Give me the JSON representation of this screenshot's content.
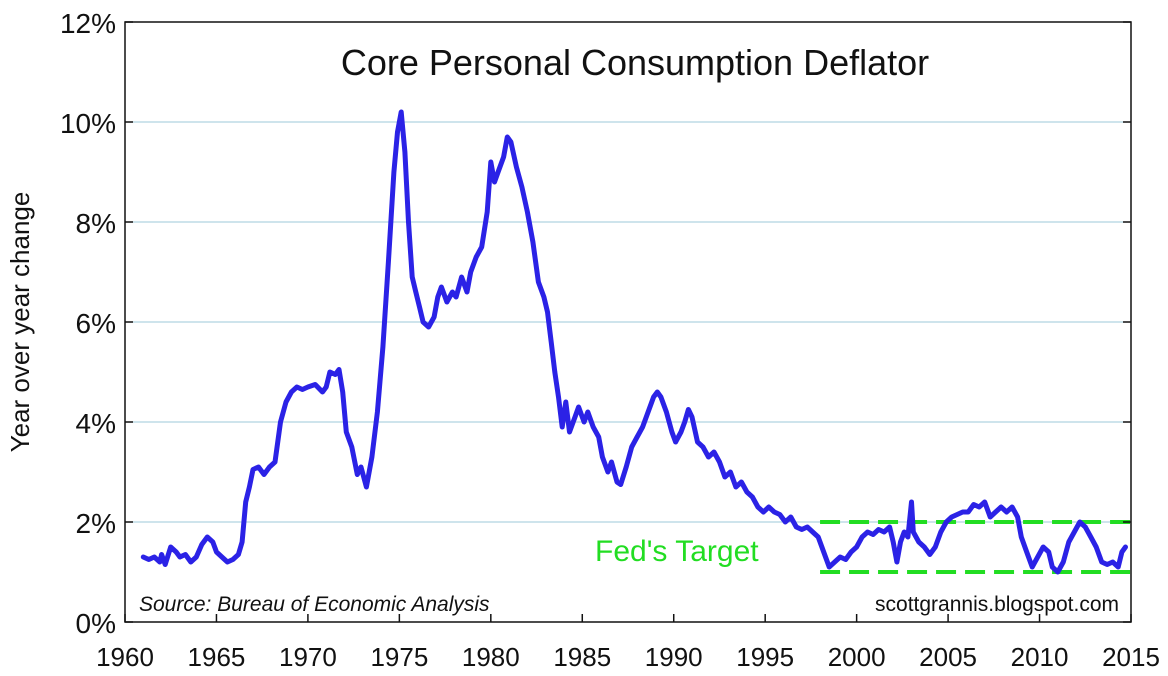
{
  "chart_data": {
    "type": "line",
    "title": "Core Personal Consumption Deflator",
    "ylabel": "Year over year change",
    "xlabel": "",
    "source": "Source: Bureau of Economic Analysis",
    "credit": "scottgrannis.blogspot.com",
    "target_label": "Fed's Target",
    "xlim": [
      1960,
      2015
    ],
    "ylim": [
      0,
      12
    ],
    "x_ticks": [
      {
        "value": 1960,
        "label": "1960"
      },
      {
        "value": 1965,
        "label": "1965"
      },
      {
        "value": 1970,
        "label": "1970"
      },
      {
        "value": 1975,
        "label": "1975"
      },
      {
        "value": 1980,
        "label": "1980"
      },
      {
        "value": 1985,
        "label": "1985"
      },
      {
        "value": 1990,
        "label": "1990"
      },
      {
        "value": 1995,
        "label": "1995"
      },
      {
        "value": 2000,
        "label": "2000"
      },
      {
        "value": 2005,
        "label": "2005"
      },
      {
        "value": 2010,
        "label": "2010"
      },
      {
        "value": 2015,
        "label": "2015"
      }
    ],
    "y_ticks": [
      {
        "value": 0,
        "label": "0%"
      },
      {
        "value": 2,
        "label": "2%"
      },
      {
        "value": 4,
        "label": "4%"
      },
      {
        "value": 6,
        "label": "6%"
      },
      {
        "value": 8,
        "label": "8%"
      },
      {
        "value": 10,
        "label": "10%"
      },
      {
        "value": 12,
        "label": "12%"
      }
    ],
    "grid": true,
    "target_band": {
      "low": 1,
      "high": 2,
      "x_start": 1998,
      "x_end": 2015
    },
    "colors": {
      "line": "#2b22e6",
      "grid": "#9ec9d8",
      "target": "#22dd22",
      "text": "#111111"
    },
    "series": [
      {
        "values": [
          [
            1961.0,
            1.3
          ],
          [
            1961.3,
            1.25
          ],
          [
            1961.6,
            1.3
          ],
          [
            1961.9,
            1.2
          ],
          [
            1962.0,
            1.35
          ],
          [
            1962.2,
            1.15
          ],
          [
            1962.5,
            1.5
          ],
          [
            1962.8,
            1.4
          ],
          [
            1963.0,
            1.3
          ],
          [
            1963.3,
            1.35
          ],
          [
            1963.6,
            1.2
          ],
          [
            1963.9,
            1.3
          ],
          [
            1964.2,
            1.55
          ],
          [
            1964.5,
            1.7
          ],
          [
            1964.8,
            1.6
          ],
          [
            1965.0,
            1.4
          ],
          [
            1965.3,
            1.3
          ],
          [
            1965.6,
            1.2
          ],
          [
            1965.9,
            1.25
          ],
          [
            1966.2,
            1.35
          ],
          [
            1966.4,
            1.6
          ],
          [
            1966.6,
            2.4
          ],
          [
            1966.8,
            2.7
          ],
          [
            1967.0,
            3.05
          ],
          [
            1967.3,
            3.1
          ],
          [
            1967.6,
            2.95
          ],
          [
            1967.9,
            3.1
          ],
          [
            1968.2,
            3.2
          ],
          [
            1968.5,
            4.0
          ],
          [
            1968.8,
            4.4
          ],
          [
            1969.1,
            4.6
          ],
          [
            1969.4,
            4.7
          ],
          [
            1969.7,
            4.65
          ],
          [
            1970.0,
            4.7
          ],
          [
            1970.4,
            4.75
          ],
          [
            1970.8,
            4.6
          ],
          [
            1971.0,
            4.7
          ],
          [
            1971.2,
            5.0
          ],
          [
            1971.5,
            4.95
          ],
          [
            1971.7,
            5.05
          ],
          [
            1971.9,
            4.6
          ],
          [
            1972.1,
            3.8
          ],
          [
            1972.4,
            3.5
          ],
          [
            1972.7,
            2.95
          ],
          [
            1972.9,
            3.1
          ],
          [
            1973.2,
            2.7
          ],
          [
            1973.5,
            3.3
          ],
          [
            1973.8,
            4.2
          ],
          [
            1974.1,
            5.5
          ],
          [
            1974.4,
            7.2
          ],
          [
            1974.7,
            9.0
          ],
          [
            1974.9,
            9.8
          ],
          [
            1975.1,
            10.2
          ],
          [
            1975.3,
            9.4
          ],
          [
            1975.5,
            8.0
          ],
          [
            1975.7,
            6.9
          ],
          [
            1975.9,
            6.6
          ],
          [
            1976.1,
            6.3
          ],
          [
            1976.3,
            6.0
          ],
          [
            1976.6,
            5.9
          ],
          [
            1976.9,
            6.1
          ],
          [
            1977.1,
            6.5
          ],
          [
            1977.3,
            6.7
          ],
          [
            1977.6,
            6.4
          ],
          [
            1977.9,
            6.6
          ],
          [
            1978.1,
            6.5
          ],
          [
            1978.4,
            6.9
          ],
          [
            1978.7,
            6.6
          ],
          [
            1978.9,
            7.0
          ],
          [
            1979.2,
            7.3
          ],
          [
            1979.5,
            7.5
          ],
          [
            1979.8,
            8.2
          ],
          [
            1980.0,
            9.2
          ],
          [
            1980.2,
            8.8
          ],
          [
            1980.4,
            9.0
          ],
          [
            1980.7,
            9.3
          ],
          [
            1980.9,
            9.7
          ],
          [
            1981.1,
            9.6
          ],
          [
            1981.4,
            9.1
          ],
          [
            1981.7,
            8.7
          ],
          [
            1982.0,
            8.2
          ],
          [
            1982.3,
            7.6
          ],
          [
            1982.6,
            6.8
          ],
          [
            1982.9,
            6.5
          ],
          [
            1983.1,
            6.2
          ],
          [
            1983.3,
            5.6
          ],
          [
            1983.5,
            5.0
          ],
          [
            1983.7,
            4.5
          ],
          [
            1983.9,
            3.9
          ],
          [
            1984.1,
            4.4
          ],
          [
            1984.3,
            3.8
          ],
          [
            1984.6,
            4.1
          ],
          [
            1984.8,
            4.3
          ],
          [
            1985.1,
            4.0
          ],
          [
            1985.3,
            4.2
          ],
          [
            1985.6,
            3.9
          ],
          [
            1985.9,
            3.7
          ],
          [
            1986.1,
            3.3
          ],
          [
            1986.4,
            3.0
          ],
          [
            1986.6,
            3.2
          ],
          [
            1986.9,
            2.8
          ],
          [
            1987.1,
            2.75
          ],
          [
            1987.4,
            3.1
          ],
          [
            1987.7,
            3.5
          ],
          [
            1988.0,
            3.7
          ],
          [
            1988.3,
            3.9
          ],
          [
            1988.6,
            4.2
          ],
          [
            1988.9,
            4.5
          ],
          [
            1989.1,
            4.6
          ],
          [
            1989.3,
            4.5
          ],
          [
            1989.6,
            4.2
          ],
          [
            1989.9,
            3.8
          ],
          [
            1990.1,
            3.6
          ],
          [
            1990.4,
            3.8
          ],
          [
            1990.6,
            4.0
          ],
          [
            1990.8,
            4.25
          ],
          [
            1991.0,
            4.1
          ],
          [
            1991.3,
            3.6
          ],
          [
            1991.6,
            3.5
          ],
          [
            1991.9,
            3.3
          ],
          [
            1992.2,
            3.4
          ],
          [
            1992.5,
            3.2
          ],
          [
            1992.8,
            2.9
          ],
          [
            1993.1,
            3.0
          ],
          [
            1993.4,
            2.7
          ],
          [
            1993.7,
            2.8
          ],
          [
            1994.0,
            2.6
          ],
          [
            1994.3,
            2.5
          ],
          [
            1994.6,
            2.3
          ],
          [
            1994.9,
            2.2
          ],
          [
            1995.2,
            2.3
          ],
          [
            1995.5,
            2.2
          ],
          [
            1995.8,
            2.15
          ],
          [
            1996.1,
            2.0
          ],
          [
            1996.4,
            2.1
          ],
          [
            1996.7,
            1.9
          ],
          [
            1997.0,
            1.85
          ],
          [
            1997.3,
            1.9
          ],
          [
            1997.6,
            1.8
          ],
          [
            1997.9,
            1.7
          ],
          [
            1998.2,
            1.4
          ],
          [
            1998.5,
            1.1
          ],
          [
            1998.8,
            1.2
          ],
          [
            1999.1,
            1.3
          ],
          [
            1999.4,
            1.25
          ],
          [
            1999.7,
            1.4
          ],
          [
            2000.0,
            1.5
          ],
          [
            2000.3,
            1.7
          ],
          [
            2000.6,
            1.8
          ],
          [
            2000.9,
            1.75
          ],
          [
            2001.2,
            1.85
          ],
          [
            2001.5,
            1.8
          ],
          [
            2001.8,
            1.9
          ],
          [
            2002.0,
            1.6
          ],
          [
            2002.2,
            1.2
          ],
          [
            2002.4,
            1.6
          ],
          [
            2002.6,
            1.8
          ],
          [
            2002.8,
            1.7
          ],
          [
            2003.0,
            2.4
          ],
          [
            2003.1,
            1.8
          ],
          [
            2003.4,
            1.6
          ],
          [
            2003.7,
            1.5
          ],
          [
            2004.0,
            1.35
          ],
          [
            2004.3,
            1.5
          ],
          [
            2004.6,
            1.8
          ],
          [
            2004.9,
            2.0
          ],
          [
            2005.2,
            2.1
          ],
          [
            2005.5,
            2.15
          ],
          [
            2005.8,
            2.2
          ],
          [
            2006.1,
            2.2
          ],
          [
            2006.4,
            2.35
          ],
          [
            2006.7,
            2.3
          ],
          [
            2007.0,
            2.4
          ],
          [
            2007.3,
            2.1
          ],
          [
            2007.6,
            2.2
          ],
          [
            2007.9,
            2.3
          ],
          [
            2008.2,
            2.2
          ],
          [
            2008.5,
            2.3
          ],
          [
            2008.8,
            2.1
          ],
          [
            2009.0,
            1.7
          ],
          [
            2009.3,
            1.4
          ],
          [
            2009.6,
            1.1
          ],
          [
            2009.9,
            1.3
          ],
          [
            2010.2,
            1.5
          ],
          [
            2010.5,
            1.4
          ],
          [
            2010.7,
            1.1
          ],
          [
            2011.0,
            1.0
          ],
          [
            2011.3,
            1.2
          ],
          [
            2011.6,
            1.6
          ],
          [
            2011.9,
            1.8
          ],
          [
            2012.2,
            2.0
          ],
          [
            2012.5,
            1.9
          ],
          [
            2012.8,
            1.7
          ],
          [
            2013.1,
            1.5
          ],
          [
            2013.4,
            1.2
          ],
          [
            2013.7,
            1.15
          ],
          [
            2014.0,
            1.2
          ],
          [
            2014.3,
            1.1
          ],
          [
            2014.5,
            1.4
          ],
          [
            2014.7,
            1.5
          ]
        ]
      }
    ]
  }
}
